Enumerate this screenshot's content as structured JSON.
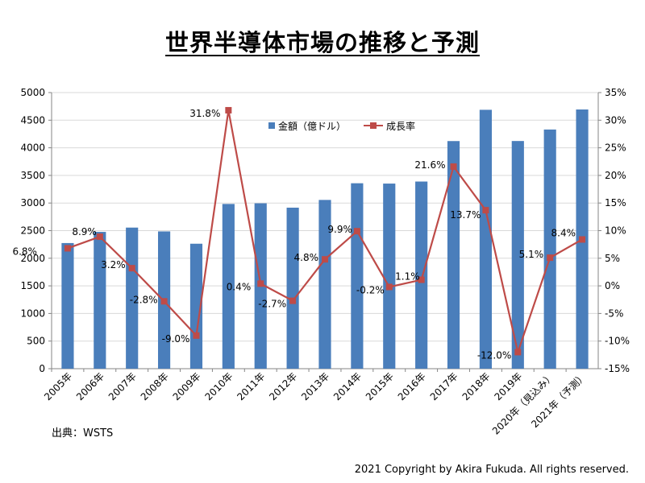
{
  "title": "世界半導体市場の推移と予測",
  "source": "出典：WSTS",
  "copyright": "2021 Copyright by Akira Fukuda. All rights reserved.",
  "colors": {
    "bar": "#4a7ebb",
    "line": "#be4b48",
    "grid": "#d9d9d9",
    "axis": "#868686"
  },
  "chart_data": {
    "type": "bar+line",
    "categories": [
      "2005年",
      "2006年",
      "2007年",
      "2008年",
      "2009年",
      "2010年",
      "2011年",
      "2012年",
      "2013年",
      "2014年",
      "2015年",
      "2016年",
      "2017年",
      "2018年",
      "2019年",
      "2020年（見込み）",
      "2021年（予測）"
    ],
    "series": [
      {
        "name": "金額（億ドル）",
        "type": "bar",
        "axis": "left",
        "values": [
          2275,
          2477,
          2555,
          2486,
          2263,
          2983,
          2995,
          2916,
          3056,
          3358,
          3352,
          3389,
          4122,
          4688,
          4123,
          4331,
          4694
        ]
      },
      {
        "name": "成長率",
        "type": "line",
        "axis": "right",
        "values": [
          6.8,
          8.9,
          3.2,
          -2.8,
          -9.0,
          31.8,
          0.4,
          -2.7,
          4.8,
          9.9,
          -0.2,
          1.1,
          21.6,
          13.7,
          -12.0,
          5.1,
          8.4
        ],
        "labels": [
          "6.8%",
          "8.9%",
          "3.2%",
          "-2.8%",
          "-9.0%",
          "31.8%",
          "0.4%",
          "-2.7%",
          "4.8%",
          "9.9%",
          "-0.2%",
          "1.1%",
          "21.6%",
          "13.7%",
          "-12.0%",
          "5.1%",
          "8.4%"
        ]
      }
    ],
    "y_left": {
      "min": 0,
      "max": 5000,
      "step": 500,
      "ticks": [
        "0",
        "500",
        "1000",
        "1500",
        "2000",
        "2500",
        "3000",
        "3500",
        "4000",
        "4500",
        "5000"
      ]
    },
    "y_right": {
      "min": -15,
      "max": 35,
      "step": 5,
      "ticks": [
        "-15%",
        "-10%",
        "-5%",
        "0%",
        "5%",
        "10%",
        "15%",
        "20%",
        "25%",
        "30%",
        "35%"
      ]
    },
    "grid": true,
    "legend_position": "top-center"
  }
}
